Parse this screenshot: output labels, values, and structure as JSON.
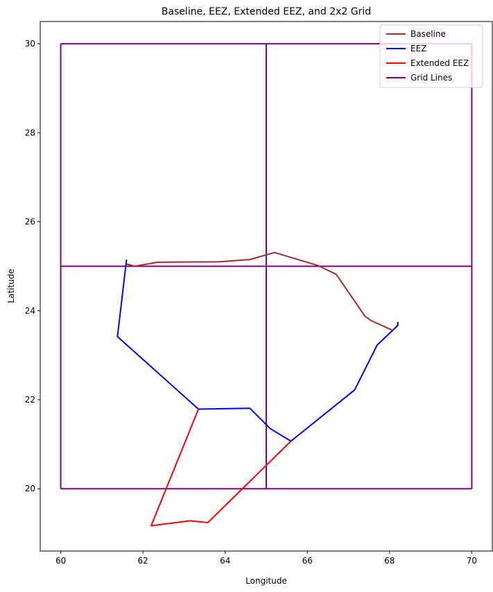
{
  "chart_data": {
    "type": "line",
    "title": "Baseline, EEZ, Extended EEZ, and 2x2 Grid",
    "xlabel": "Longitude",
    "ylabel": "Latitude",
    "xlim": [
      59.5,
      70.5
    ],
    "ylim": [
      18.6,
      30.5
    ],
    "xticks": [
      60,
      62,
      64,
      66,
      68,
      70
    ],
    "yticks": [
      20,
      22,
      24,
      26,
      28,
      30
    ],
    "grid": false,
    "legend_position": "top-right",
    "series": [
      {
        "name": "Baseline",
        "color": "#a52a2a",
        "x": [
          61.6,
          61.8,
          62.35,
          63.85,
          64.6,
          65.2,
          66.25,
          66.7,
          67.4,
          67.55,
          68.05
        ],
        "y": [
          25.05,
          25.0,
          25.09,
          25.1,
          25.15,
          25.31,
          25.02,
          24.82,
          23.88,
          23.78,
          23.57
        ]
      },
      {
        "name": "EEZ",
        "color": "#0000ff",
        "x": [
          61.6,
          61.38,
          63.35,
          64.6,
          65.1,
          65.6,
          67.15,
          67.7,
          68.2,
          68.2
        ],
        "y": [
          25.15,
          23.42,
          21.79,
          21.81,
          21.35,
          21.07,
          22.22,
          23.23,
          23.67,
          23.75
        ]
      },
      {
        "name": "Extended EEZ",
        "color": "#ff0000",
        "x": [
          63.35,
          62.2,
          63.15,
          63.58,
          65.6
        ],
        "y": [
          21.79,
          19.17,
          19.28,
          19.24,
          21.07
        ]
      },
      {
        "name": "Grid Lines",
        "color": "#800080",
        "lines": [
          {
            "x": [
              60,
              70
            ],
            "y": [
              20,
              20
            ]
          },
          {
            "x": [
              60,
              70
            ],
            "y": [
              25,
              25
            ]
          },
          {
            "x": [
              60,
              70
            ],
            "y": [
              30,
              30
            ]
          },
          {
            "x": [
              60,
              60
            ],
            "y": [
              20,
              30
            ]
          },
          {
            "x": [
              65,
              65
            ],
            "y": [
              20,
              30
            ]
          },
          {
            "x": [
              70,
              70
            ],
            "y": [
              20,
              30
            ]
          }
        ]
      }
    ]
  }
}
